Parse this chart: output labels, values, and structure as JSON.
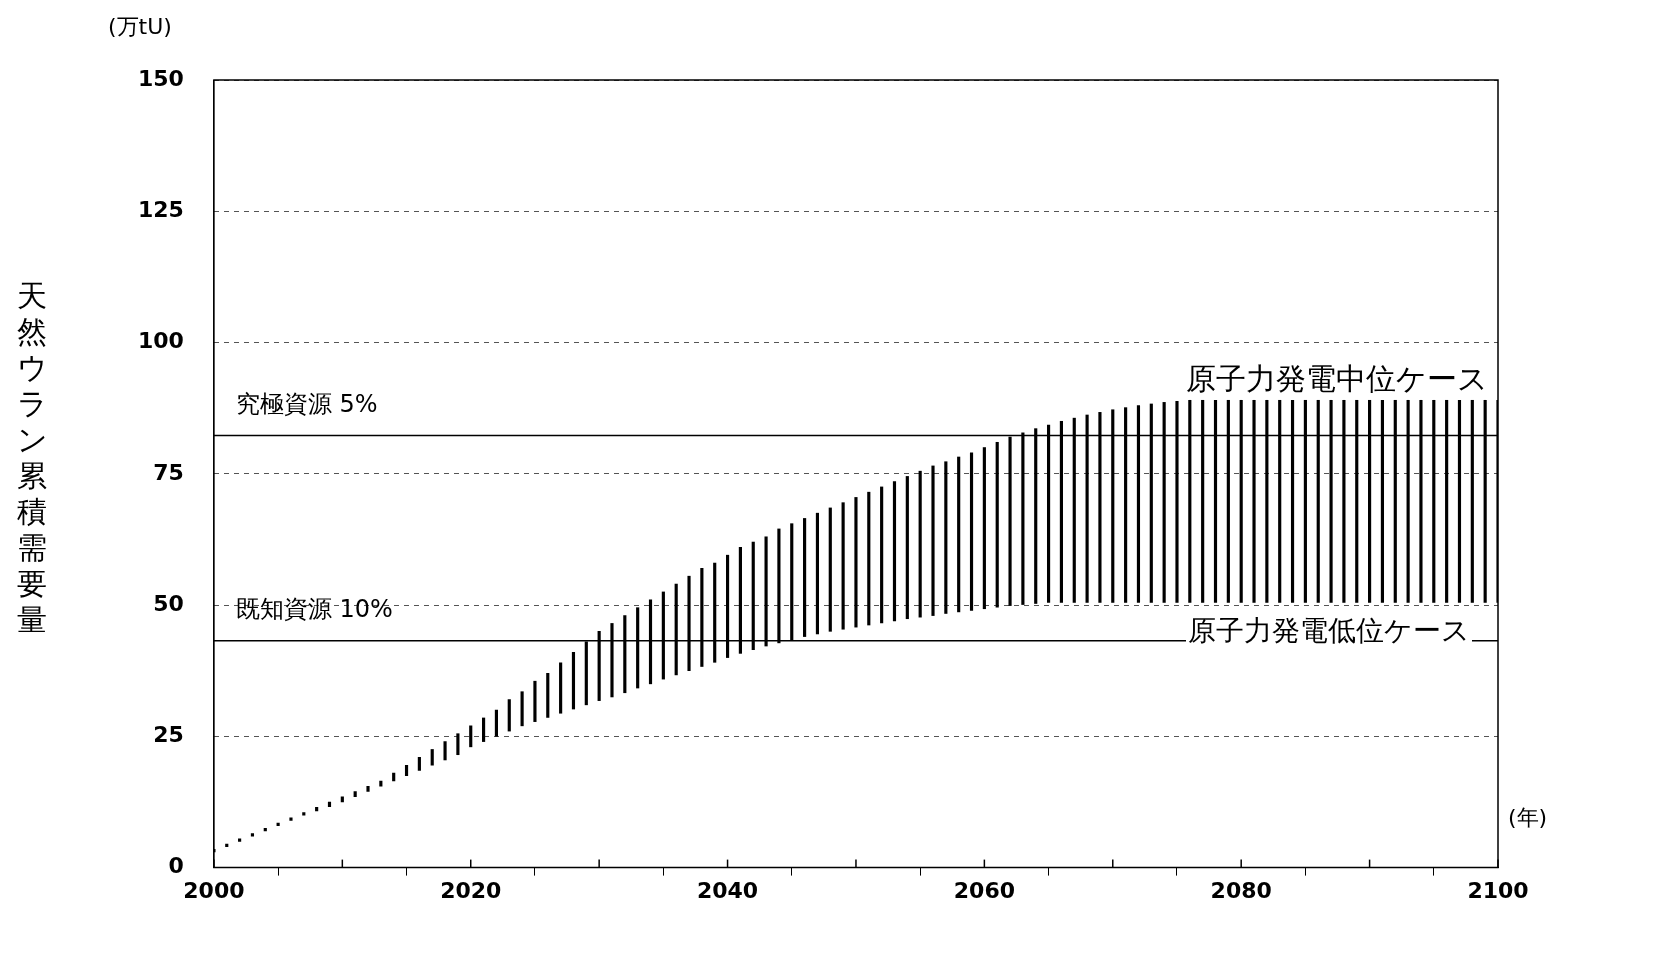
{
  "chart_data": {
    "type": "bar",
    "ylabel": "天然ウラン累積需要量",
    "xlabel": "(年)",
    "x": [
      2000,
      2001,
      2002,
      2003,
      2004,
      2005,
      2006,
      2007,
      2008,
      2009,
      2010,
      2011,
      2012,
      2013,
      2014,
      2015,
      2016,
      2017,
      2018,
      2019,
      2020,
      2021,
      2022,
      2023,
      2024,
      2025,
      2026,
      2027,
      2028,
      2029,
      2030,
      2031,
      2032,
      2033,
      2034,
      2035,
      2036,
      2037,
      2038,
      2039,
      2040,
      2041,
      2042,
      2043,
      2044,
      2045,
      2046,
      2047,
      2048,
      2049,
      2050,
      2051,
      2052,
      2053,
      2054,
      2055,
      2056,
      2057,
      2058,
      2059,
      2060,
      2061,
      2062,
      2063,
      2064,
      2065,
      2066,
      2067,
      2068,
      2069,
      2070,
      2071,
      2072,
      2073,
      2074,
      2075,
      2076,
      2077,
      2078,
      2079,
      2080,
      2081,
      2082,
      2083,
      2084,
      2085,
      2086,
      2087,
      2088,
      2089,
      2090,
      2091,
      2092,
      2093,
      2094,
      2095,
      2096,
      2097,
      2098,
      2099,
      2100
    ],
    "base": [
      3,
      4,
      5,
      6,
      7,
      8,
      9,
      10,
      10.8,
      11.6,
      12.5,
      13.5,
      14.5,
      15.5,
      16.5,
      17.5,
      18.5,
      19.5,
      20.5,
      21.5,
      23,
      24,
      25,
      26,
      27,
      27.8,
      28.6,
      29.4,
      30.2,
      31,
      31.8,
      32.5,
      33.3,
      34.2,
      35,
      35.9,
      36.7,
      37.5,
      38.3,
      39.1,
      40,
      40.8,
      41.5,
      42.2,
      42.8,
      43.4,
      44,
      44.5,
      45,
      45.4,
      45.8,
      46.2,
      46.6,
      47,
      47.4,
      47.7,
      48,
      48.4,
      48.7,
      49,
      49.3,
      49.6,
      49.9,
      50.1,
      50.3,
      50.5,
      50.5,
      50.5,
      50.5,
      50.5,
      50.5,
      50.5,
      50.5,
      50.5,
      50.5,
      50.5,
      50.5,
      50.5,
      50.5,
      50.5,
      50.5,
      50.5,
      50.5,
      50.5,
      50.5,
      50.5,
      50.5,
      50.5,
      50.5,
      50.5,
      50.5,
      50.5,
      50.5,
      50.5,
      50.5,
      50.5,
      50.5,
      50.5,
      50.5,
      50.5,
      50.5
    ],
    "values": [
      0.5,
      0.5,
      0.5,
      0.5,
      0.5,
      0.5,
      0.5,
      0.5,
      0.7,
      0.9,
      1,
      1,
      1,
      1,
      1.5,
      2,
      2.5,
      3,
      3.5,
      4,
      4,
      4.5,
      5,
      6,
      6.5,
      7.7,
      8.4,
      9.6,
      10.8,
      12,
      13.2,
      14,
      14.7,
      15.3,
      16,
      16.6,
      17.3,
      18,
      18.7,
      18.9,
      19.5,
      20.2,
      20.5,
      20.8,
      21.7,
      22.1,
      22.5,
      23,
      23.5,
      24.1,
      24.7,
      25.3,
      25.9,
      26.5,
      27.1,
      27.8,
      28.5,
      28.9,
      29.5,
      30,
      30.7,
      31.4,
      32.1,
      32.7,
      33.3,
      33.8,
      34.5,
      35.1,
      35.7,
      36.2,
      36.7,
      37.1,
      37.5,
      37.8,
      38.1,
      38.3,
      38.5,
      38.5,
      38.5,
      38.5,
      38.5,
      38.5,
      38.5,
      38.5,
      38.5,
      38.5,
      38.5,
      38.5,
      38.5,
      38.5,
      38.5,
      38.5,
      38.5,
      38.5,
      38.5,
      38.5,
      38.5,
      38.5,
      38.5,
      38.5,
      38.5
    ],
    "color": "#000000",
    "xlim": [
      2000,
      2100
    ],
    "xticks": [
      2000,
      {
        "value": 2010,
        "label": null
      },
      2020,
      {
        "value": 2030,
        "label": null
      },
      2040,
      {
        "value": 2050,
        "label": null
      },
      2060,
      {
        "value": 2070,
        "label": null
      },
      2080,
      {
        "value": 2090,
        "label": null
      },
      2100
    ],
    "ylim": [
      0,
      150
    ],
    "yticks": [
      0,
      25,
      50,
      75,
      100,
      125,
      150
    ],
    "grid": "y",
    "ref_lines": [
      {
        "axis": "y",
        "value": 82.3,
        "label": "究極資源 5%",
        "color": "#000000"
      },
      {
        "axis": "y",
        "value": 43.2,
        "label": "既知資源 10%",
        "color": "#000000"
      }
    ],
    "annotations": [
      "(万tU)",
      "原子力発電中位ケース",
      "原子力発電低位ケース"
    ],
    "legend": false
  }
}
